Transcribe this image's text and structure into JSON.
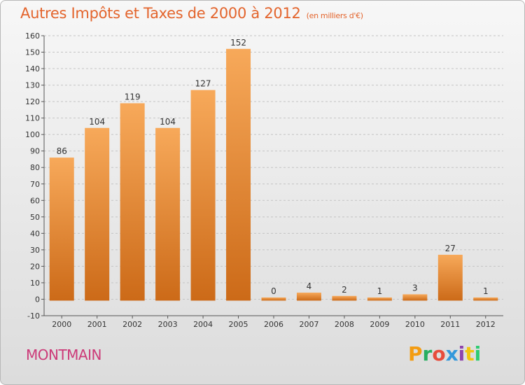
{
  "title": "Autres Impôts et Taxes de 2000 à 2012",
  "subtitle": "(en milliers d'€)",
  "commune": "MONTMAIN",
  "brand": {
    "letters": [
      "P",
      "r",
      "o",
      "x",
      "i",
      "t",
      "i"
    ],
    "colors": [
      "#f39c12",
      "#27ae60",
      "#e74c3c",
      "#3498db",
      "#8e44ad",
      "#f1c40f",
      "#2ecc71"
    ]
  },
  "colors": {
    "bar_light": "#f7a95a",
    "bar_dark": "#cc6a18",
    "title": "#e3642c",
    "commune": "#cc3a78"
  },
  "chart_data": {
    "type": "bar",
    "title": "Autres Impôts et Taxes de 2000 à 2012",
    "subtitle": "(en milliers d'€)",
    "categories": [
      "2000",
      "2001",
      "2002",
      "2003",
      "2004",
      "2005",
      "2006",
      "2007",
      "2008",
      "2009",
      "2010",
      "2011",
      "2012"
    ],
    "values": [
      86,
      104,
      119,
      104,
      127,
      152,
      0,
      4,
      2,
      1,
      3,
      27,
      1
    ],
    "data_labels": [
      "86",
      "104",
      "119",
      "104",
      "127",
      "152",
      "0",
      "4",
      "2",
      "1",
      "3",
      "27",
      "1"
    ],
    "ylim": [
      -10,
      160
    ],
    "yticks": [
      "-10",
      "0",
      "10",
      "20",
      "30",
      "40",
      "50",
      "60",
      "70",
      "80",
      "90",
      "100",
      "110",
      "120",
      "130",
      "140",
      "150",
      "160"
    ],
    "grid": "horizontal-dashed",
    "legend": "none"
  }
}
